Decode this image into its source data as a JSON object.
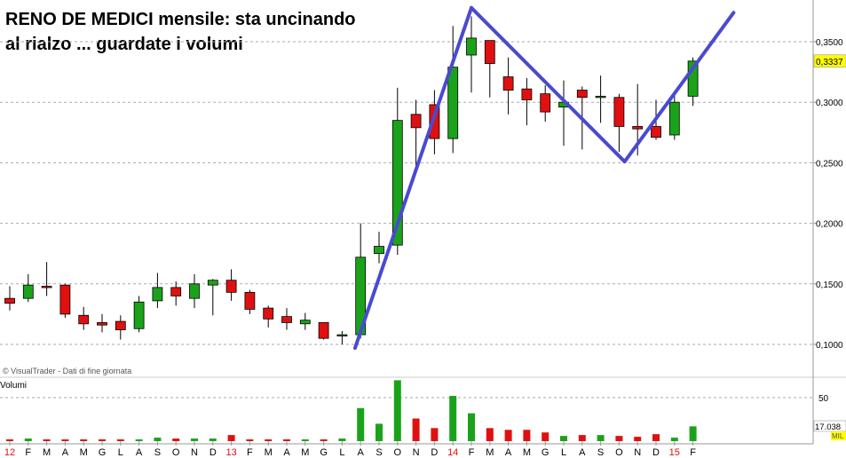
{
  "title": "RENO DE MEDICI mensile: sta uncinando al rialzo ... guardate i volumi",
  "credit": "© VisualTrader - Dati di fine giornata",
  "volume_label": "Volumi",
  "colors": {
    "up": "#1aa31a",
    "down": "#e01010",
    "trend": "#4a4ad0",
    "price_box": "#ffff00"
  },
  "chart_data": {
    "type": "candlestick",
    "price_axis": {
      "ticks": [
        "0,1000",
        "0,1500",
        "0,2000",
        "0,2500",
        "0,3000",
        "0,3500"
      ],
      "tick_values": [
        0.1,
        0.15,
        0.2,
        0.25,
        0.3,
        0.35
      ],
      "range": [
        0.09,
        0.38
      ],
      "last_price_label": "0,3337"
    },
    "volume_axis": {
      "ticks": [
        "50"
      ],
      "tick_values": [
        50
      ],
      "last_volume_label": "17.038",
      "unit": "MIL"
    },
    "month_labels": [
      "12",
      "F",
      "M",
      "A",
      "M",
      "G",
      "L",
      "A",
      "S",
      "O",
      "N",
      "D",
      "13",
      "F",
      "M",
      "A",
      "M",
      "G",
      "L",
      "A",
      "S",
      "O",
      "N",
      "D",
      "14",
      "F",
      "M",
      "A",
      "M",
      "G",
      "L",
      "A",
      "S",
      "O",
      "N",
      "D",
      "15",
      "F"
    ],
    "year_label_indices": [
      0,
      12,
      24,
      36
    ],
    "candles": [
      {
        "o": 0.138,
        "h": 0.148,
        "l": 0.128,
        "c": 0.134
      },
      {
        "o": 0.138,
        "h": 0.158,
        "l": 0.135,
        "c": 0.149
      },
      {
        "o": 0.148,
        "h": 0.168,
        "l": 0.14,
        "c": 0.147
      },
      {
        "o": 0.149,
        "h": 0.15,
        "l": 0.122,
        "c": 0.125
      },
      {
        "o": 0.124,
        "h": 0.131,
        "l": 0.112,
        "c": 0.117
      },
      {
        "o": 0.118,
        "h": 0.125,
        "l": 0.11,
        "c": 0.116
      },
      {
        "o": 0.119,
        "h": 0.124,
        "l": 0.104,
        "c": 0.112
      },
      {
        "o": 0.113,
        "h": 0.14,
        "l": 0.11,
        "c": 0.135
      },
      {
        "o": 0.136,
        "h": 0.159,
        "l": 0.13,
        "c": 0.147
      },
      {
        "o": 0.147,
        "h": 0.152,
        "l": 0.132,
        "c": 0.14
      },
      {
        "o": 0.138,
        "h": 0.158,
        "l": 0.13,
        "c": 0.15
      },
      {
        "o": 0.149,
        "h": 0.154,
        "l": 0.124,
        "c": 0.153
      },
      {
        "o": 0.153,
        "h": 0.162,
        "l": 0.136,
        "c": 0.143
      },
      {
        "o": 0.143,
        "h": 0.145,
        "l": 0.125,
        "c": 0.129
      },
      {
        "o": 0.13,
        "h": 0.132,
        "l": 0.114,
        "c": 0.121
      },
      {
        "o": 0.123,
        "h": 0.13,
        "l": 0.112,
        "c": 0.118
      },
      {
        "o": 0.117,
        "h": 0.126,
        "l": 0.112,
        "c": 0.12
      },
      {
        "o": 0.118,
        "h": 0.118,
        "l": 0.104,
        "c": 0.105
      },
      {
        "o": 0.107,
        "h": 0.111,
        "l": 0.1,
        "c": 0.108
      },
      {
        "o": 0.108,
        "h": 0.2,
        "l": 0.105,
        "c": 0.172
      },
      {
        "o": 0.175,
        "h": 0.193,
        "l": 0.167,
        "c": 0.181
      },
      {
        "o": 0.182,
        "h": 0.312,
        "l": 0.174,
        "c": 0.285
      },
      {
        "o": 0.29,
        "h": 0.302,
        "l": 0.246,
        "c": 0.279
      },
      {
        "o": 0.298,
        "h": 0.31,
        "l": 0.257,
        "c": 0.27
      },
      {
        "o": 0.27,
        "h": 0.363,
        "l": 0.258,
        "c": 0.329
      },
      {
        "o": 0.339,
        "h": 0.371,
        "l": 0.308,
        "c": 0.353
      },
      {
        "o": 0.351,
        "h": 0.35,
        "l": 0.304,
        "c": 0.332
      },
      {
        "o": 0.321,
        "h": 0.337,
        "l": 0.29,
        "c": 0.31
      },
      {
        "o": 0.311,
        "h": 0.32,
        "l": 0.281,
        "c": 0.302
      },
      {
        "o": 0.307,
        "h": 0.314,
        "l": 0.284,
        "c": 0.292
      },
      {
        "o": 0.296,
        "h": 0.318,
        "l": 0.264,
        "c": 0.3
      },
      {
        "o": 0.31,
        "h": 0.313,
        "l": 0.261,
        "c": 0.304
      },
      {
        "o": 0.305,
        "h": 0.322,
        "l": 0.283,
        "c": 0.305
      },
      {
        "o": 0.304,
        "h": 0.307,
        "l": 0.259,
        "c": 0.28
      },
      {
        "o": 0.28,
        "h": 0.315,
        "l": 0.256,
        "c": 0.278
      },
      {
        "o": 0.28,
        "h": 0.302,
        "l": 0.269,
        "c": 0.271
      },
      {
        "o": 0.273,
        "h": 0.309,
        "l": 0.269,
        "c": 0.3
      },
      {
        "o": 0.305,
        "h": 0.337,
        "l": 0.297,
        "c": 0.334
      }
    ],
    "volumes": [
      2,
      3,
      2,
      2,
      2,
      2,
      2,
      2,
      4,
      3,
      3,
      3,
      7,
      2,
      2,
      2,
      2,
      2,
      3,
      38,
      20,
      70,
      26,
      15,
      52,
      32,
      15,
      13,
      13,
      10,
      6,
      7,
      7,
      6,
      5,
      8,
      4,
      17
    ],
    "trend_lines": [
      [
        {
          "i": 18.7,
          "v": 0.097
        },
        {
          "i": 25.0,
          "v": 0.378
        }
      ],
      [
        {
          "i": 25.0,
          "v": 0.378
        },
        {
          "i": 33.3,
          "v": 0.251
        }
      ],
      [
        {
          "i": 33.3,
          "v": 0.251
        },
        {
          "i": 39.2,
          "v": 0.374
        }
      ]
    ]
  }
}
